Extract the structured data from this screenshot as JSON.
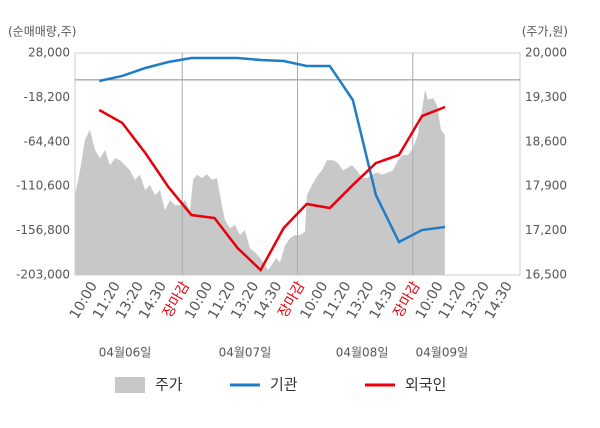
{
  "chart_data": {
    "type": "line",
    "y_label": "(순매매량,주)",
    "y2_label": "(주가,원)",
    "xlim": [
      -0.65,
      18.65
    ],
    "xticks": [
      {
        "value": 0,
        "label": "10:00"
      },
      {
        "value": 1,
        "label": "11:20"
      },
      {
        "value": 2,
        "label": "13:20"
      },
      {
        "value": 3,
        "label": "14:30"
      },
      {
        "value": 4,
        "label": "장마감"
      },
      {
        "value": 5,
        "label": "10:00"
      },
      {
        "value": 6,
        "label": "11:20"
      },
      {
        "value": 7,
        "label": "13:20"
      },
      {
        "value": 8,
        "label": "14:30"
      },
      {
        "value": 9,
        "label": "장마감"
      },
      {
        "value": 10,
        "label": "10:00"
      },
      {
        "value": 11,
        "label": "11:20"
      },
      {
        "value": 12,
        "label": "13:20"
      },
      {
        "value": 13,
        "label": "14:30"
      },
      {
        "value": 14,
        "label": "장마감"
      },
      {
        "value": 15,
        "label": "10:00"
      },
      {
        "value": 16,
        "label": "11:20"
      },
      {
        "value": 17,
        "label": "13:20"
      },
      {
        "value": 18,
        "label": "14:30"
      }
    ],
    "vlines": [
      4,
      9,
      14
    ],
    "vline_label_color": "#e8000b",
    "day_labels": [
      {
        "x": 1.52,
        "label": "04월06일"
      },
      {
        "x": 6.72,
        "label": "04월07일"
      },
      {
        "x": 11.8,
        "label": "04월08일"
      },
      {
        "x": 15.26,
        "label": "04월09일"
      }
    ],
    "ylim": [
      -203000,
      28000
    ],
    "yticks": [
      {
        "value": 28000,
        "label": "28,000"
      },
      {
        "value": -18200,
        "label": "-18,200"
      },
      {
        "value": -64400,
        "label": "-64,400"
      },
      {
        "value": -110600,
        "label": "-110,600"
      },
      {
        "value": -156800,
        "label": "-156,800"
      },
      {
        "value": -203000,
        "label": "-203,000"
      }
    ],
    "hline": 0,
    "y2lim": [
      16500,
      20000
    ],
    "y2ticks": [
      {
        "value": 20000,
        "label": "20,000"
      },
      {
        "value": 19300,
        "label": "19,300"
      },
      {
        "value": 18600,
        "label": "18,600"
      },
      {
        "value": 17900,
        "label": "17,900"
      },
      {
        "value": 17200,
        "label": "17,200"
      },
      {
        "value": 16500,
        "label": "16,500"
      }
    ],
    "series": [
      {
        "name": "주가",
        "type": "area",
        "axis": "y2",
        "color": "#c8c8c8",
        "x": [
          -0.65,
          -0.43,
          -0.22,
          0,
          0.22,
          0.43,
          0.65,
          0.87,
          1.08,
          1.3,
          1.52,
          1.73,
          1.95,
          2.17,
          2.39,
          2.6,
          2.82,
          3.04,
          3.25,
          3.47,
          3.69,
          3.9,
          4.12,
          4.34,
          4.47,
          4.64,
          4.86,
          5.07,
          5.29,
          5.51,
          5.68,
          5.85,
          6.07,
          6.29,
          6.5,
          6.72,
          6.94,
          7.16,
          7.37,
          7.59,
          7.72,
          7.89,
          8.07,
          8.24,
          8.46,
          8.67,
          8.89,
          9.11,
          9.32,
          9.41,
          9.63,
          9.89,
          10.06,
          10.28,
          10.54,
          10.75,
          10.97,
          11.19,
          11.36,
          11.58,
          11.8,
          12.01,
          12.23,
          12.45,
          12.66,
          12.88,
          13.14,
          13.36,
          13.57,
          13.79,
          14.01,
          14.22,
          14.4,
          14.53,
          14.66,
          14.87,
          15.05,
          15.22,
          15.39
        ],
        "values": [
          17760,
          18150,
          18630,
          18790,
          18470,
          18340,
          18470,
          18230,
          18340,
          18310,
          18230,
          18150,
          18000,
          18080,
          17840,
          17920,
          17760,
          17840,
          17520,
          17680,
          17600,
          17600,
          17680,
          17520,
          18000,
          18080,
          18030,
          18090,
          18000,
          18030,
          17680,
          17370,
          17240,
          17290,
          17130,
          17210,
          16920,
          16860,
          16770,
          16660,
          16580,
          16660,
          16770,
          16700,
          16970,
          17080,
          17130,
          17130,
          17180,
          17760,
          17920,
          18080,
          18150,
          18310,
          18310,
          18270,
          18150,
          18190,
          18230,
          18150,
          18030,
          18030,
          18080,
          18120,
          18080,
          18110,
          18150,
          18310,
          18390,
          18390,
          18500,
          18710,
          19100,
          19420,
          19260,
          19290,
          19180,
          18790,
          18710
        ]
      },
      {
        "name": "기관",
        "color": "#1f7cc6",
        "x": [
          0.4,
          1.4,
          2.4,
          3.4,
          4.4,
          5.4,
          6.4,
          7.4,
          8.4,
          9.4,
          10.4,
          11.4,
          12.4,
          13.4,
          14.4,
          15.4
        ],
        "values": [
          -1100,
          4100,
          12400,
          18600,
          22800,
          22800,
          22800,
          20700,
          19700,
          14500,
          14500,
          -20900,
          -119800,
          -168700,
          -156200,
          -153000
        ]
      },
      {
        "name": "외국인",
        "color": "#e8000b",
        "x": [
          0.4,
          1.4,
          2.4,
          3.4,
          4.4,
          5.4,
          6.4,
          7.4,
          8.4,
          9.4,
          10.4,
          11.4,
          12.4,
          13.4,
          14.4,
          15.4
        ],
        "values": [
          -31300,
          -44800,
          -76100,
          -111400,
          -140600,
          -143700,
          -174900,
          -197800,
          -154100,
          -129100,
          -133300,
          -109300,
          -86500,
          -78100,
          -37600,
          -28200
        ]
      }
    ]
  }
}
